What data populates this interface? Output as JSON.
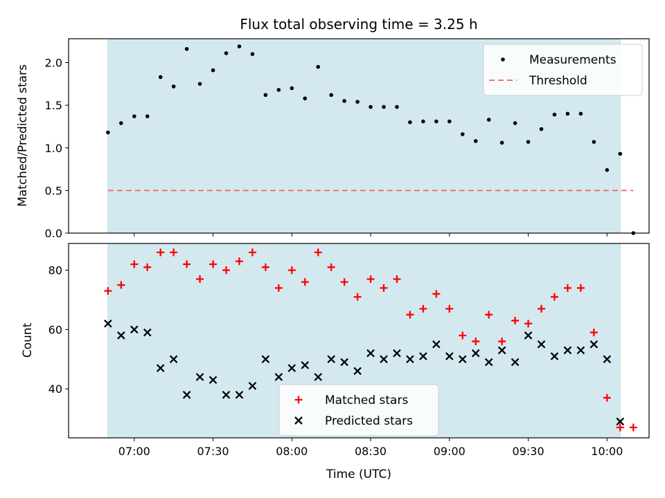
{
  "chart_data": [
    {
      "type": "scatter",
      "title": "Flux total observing time = 3.25 h",
      "xlabel": "",
      "ylabel": "Matched/Predicted stars",
      "ylim": [
        0,
        2.28
      ],
      "yticks": [
        "0.0",
        "0.5",
        "1.0",
        "1.5",
        "2.0"
      ],
      "shaded_region": {
        "start": "06:50",
        "end": "10:05",
        "color": "#d4e9ef"
      },
      "legend_position": "top-right",
      "series": [
        {
          "name": "Measurements",
          "marker": "dot",
          "color": "#000000",
          "x": [
            "06:50",
            "06:55",
            "07:00",
            "07:05",
            "07:10",
            "07:15",
            "07:20",
            "07:25",
            "07:30",
            "07:35",
            "07:40",
            "07:45",
            "07:50",
            "07:55",
            "08:00",
            "08:05",
            "08:10",
            "08:15",
            "08:20",
            "08:25",
            "08:30",
            "08:35",
            "08:40",
            "08:45",
            "08:50",
            "08:55",
            "09:00",
            "09:05",
            "09:10",
            "09:15",
            "09:20",
            "09:25",
            "09:30",
            "09:35",
            "09:40",
            "09:45",
            "09:50",
            "09:55",
            "10:00",
            "10:05",
            "10:10"
          ],
          "y": [
            1.18,
            1.29,
            1.37,
            1.37,
            1.83,
            1.72,
            2.16,
            1.75,
            1.91,
            2.11,
            2.19,
            2.1,
            1.62,
            1.68,
            1.7,
            1.58,
            1.95,
            1.62,
            1.55,
            1.54,
            1.48,
            1.48,
            1.48,
            1.3,
            1.31,
            1.31,
            1.31,
            1.16,
            1.08,
            1.33,
            1.06,
            1.29,
            1.07,
            1.22,
            1.39,
            1.4,
            1.4,
            1.07,
            0.74,
            0.93,
            0.0
          ]
        },
        {
          "name": "Threshold",
          "marker": "dashed-line",
          "color": "#f07070",
          "x": [
            "06:50",
            "10:10"
          ],
          "y": [
            0.5,
            0.5
          ]
        }
      ]
    },
    {
      "type": "scatter",
      "xlabel": "Time (UTC)",
      "ylabel": "Count",
      "ylim": [
        23.5,
        89
      ],
      "yticks": [
        "40",
        "60",
        "80"
      ],
      "xticks": [
        "07:00",
        "07:30",
        "08:00",
        "08:30",
        "09:00",
        "09:30",
        "10:00"
      ],
      "shaded_region": {
        "start": "06:50",
        "end": "10:05",
        "color": "#d4e9ef"
      },
      "legend_position": "bottom-center",
      "series": [
        {
          "name": "Matched stars",
          "marker": "plus",
          "color": "#ff0000",
          "x": [
            "06:50",
            "06:55",
            "07:00",
            "07:05",
            "07:10",
            "07:15",
            "07:20",
            "07:25",
            "07:30",
            "07:35",
            "07:40",
            "07:45",
            "07:50",
            "07:55",
            "08:00",
            "08:05",
            "08:10",
            "08:15",
            "08:20",
            "08:25",
            "08:30",
            "08:35",
            "08:40",
            "08:45",
            "08:50",
            "08:55",
            "09:00",
            "09:05",
            "09:10",
            "09:15",
            "09:20",
            "09:25",
            "09:30",
            "09:35",
            "09:40",
            "09:45",
            "09:50",
            "09:55",
            "10:00",
            "10:05",
            "10:10"
          ],
          "y": [
            73,
            75,
            82,
            81,
            86,
            86,
            82,
            77,
            82,
            80,
            83,
            86,
            81,
            74,
            80,
            76,
            86,
            81,
            76,
            71,
            77,
            74,
            77,
            65,
            67,
            72,
            67,
            58,
            56,
            65,
            56,
            63,
            62,
            67,
            71,
            74,
            74,
            59,
            37,
            27,
            27
          ]
        },
        {
          "name": "Predicted stars",
          "marker": "x",
          "color": "#000000",
          "x": [
            "06:50",
            "06:55",
            "07:00",
            "07:05",
            "07:10",
            "07:15",
            "07:20",
            "07:25",
            "07:30",
            "07:35",
            "07:40",
            "07:45",
            "07:50",
            "07:55",
            "08:00",
            "08:05",
            "08:10",
            "08:15",
            "08:20",
            "08:25",
            "08:30",
            "08:35",
            "08:40",
            "08:45",
            "08:50",
            "08:55",
            "09:00",
            "09:05",
            "09:10",
            "09:15",
            "09:20",
            "09:25",
            "09:30",
            "09:35",
            "09:40",
            "09:45",
            "09:50",
            "09:55",
            "10:00",
            "10:05"
          ],
          "y": [
            62,
            58,
            60,
            59,
            47,
            50,
            38,
            44,
            43,
            38,
            38,
            41,
            50,
            44,
            47,
            48,
            44,
            50,
            49,
            46,
            52,
            50,
            52,
            50,
            51,
            55,
            51,
            50,
            52,
            49,
            53,
            49,
            58,
            55,
            51,
            53,
            53,
            55,
            50,
            29
          ]
        }
      ]
    }
  ]
}
